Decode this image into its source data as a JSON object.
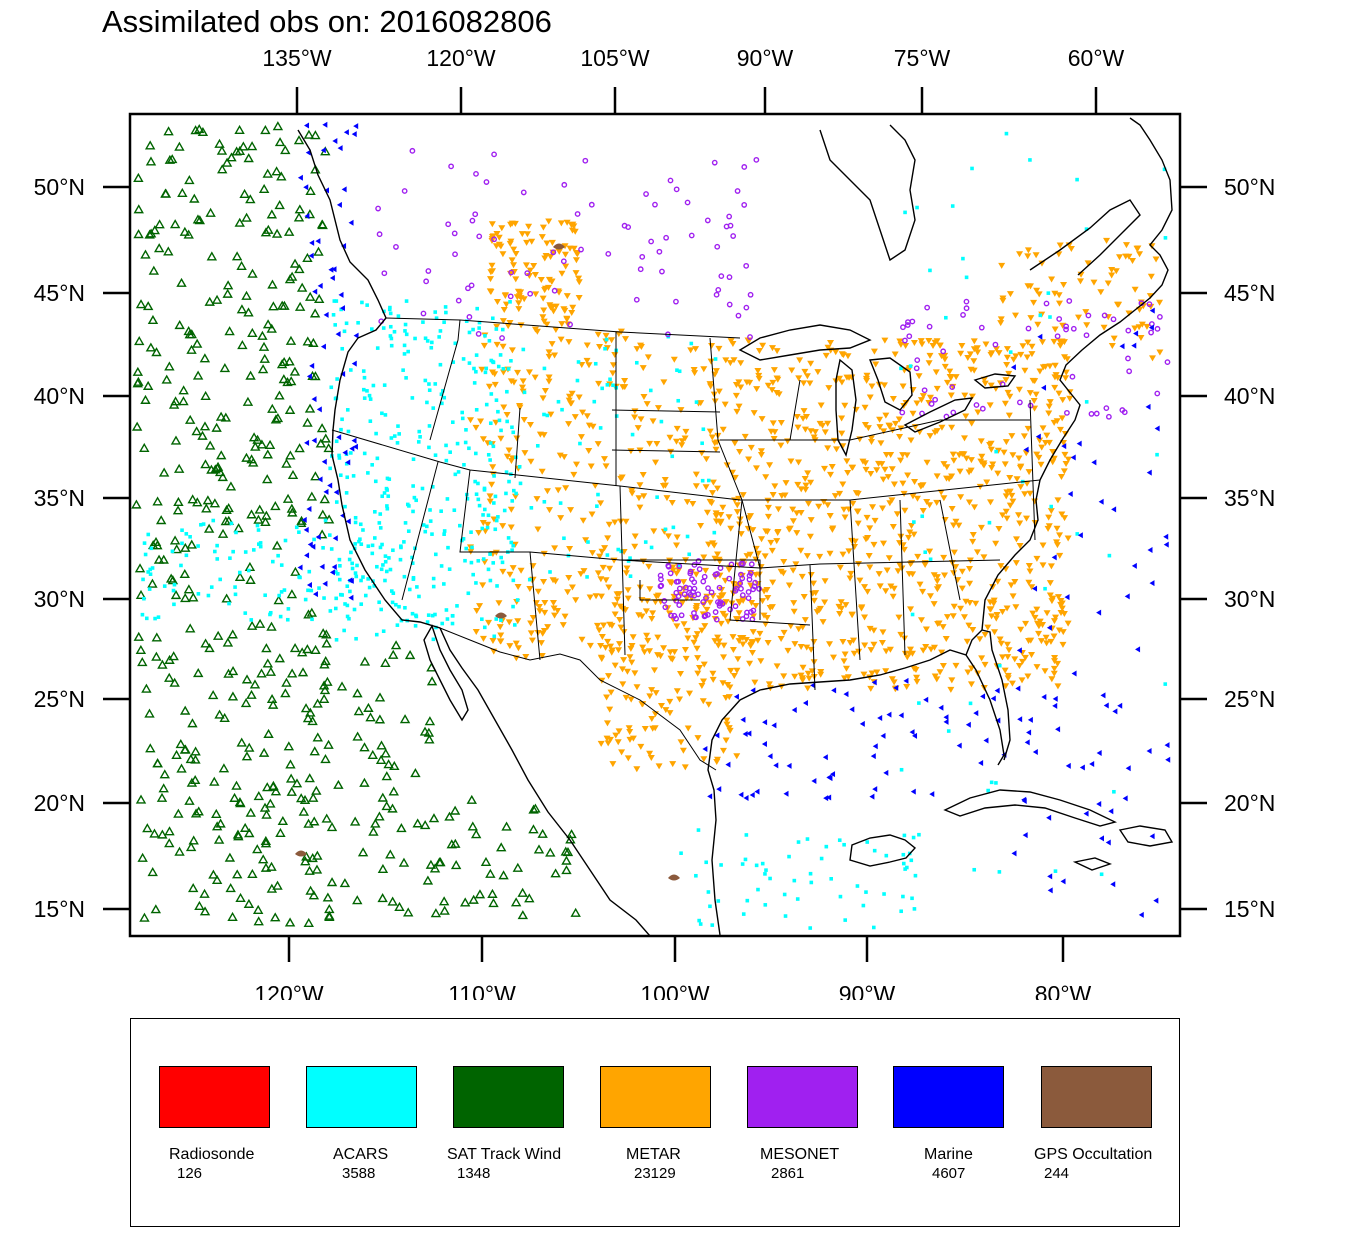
{
  "title": "Assimilated obs on: 2016082806",
  "axes": {
    "top_lon_ticks": [
      "135°W",
      "120°W",
      "105°W",
      "90°W",
      "75°W",
      "60°W"
    ],
    "bottom_lon_ticks": [
      "120°W",
      "110°W",
      "100°W",
      "90°W",
      "80°W"
    ],
    "left_lat_ticks": [
      "50°N",
      "45°N",
      "40°N",
      "35°N",
      "30°N",
      "25°N",
      "20°N",
      "15°N"
    ],
    "right_lat_ticks": [
      "50°N",
      "45°N",
      "40°N",
      "35°N",
      "30°N",
      "25°N",
      "20°N",
      "15°N"
    ]
  },
  "legend": [
    {
      "name": "Radiosonde",
      "count": "126",
      "color": "#ff0000"
    },
    {
      "name": "ACARS",
      "count": "3588",
      "color": "#00ffff"
    },
    {
      "name": "SAT Track Wind",
      "count": "1348",
      "color": "#006400"
    },
    {
      "name": "METAR",
      "count": "23129",
      "color": "#ffa500"
    },
    {
      "name": "MESONET",
      "count": "2861",
      "color": "#a020f0"
    },
    {
      "name": "Marine",
      "count": "4607",
      "color": "#0000ff"
    },
    {
      "name": "GPS Occultation",
      "count": "244",
      "color": "#8b5a3c"
    }
  ]
}
